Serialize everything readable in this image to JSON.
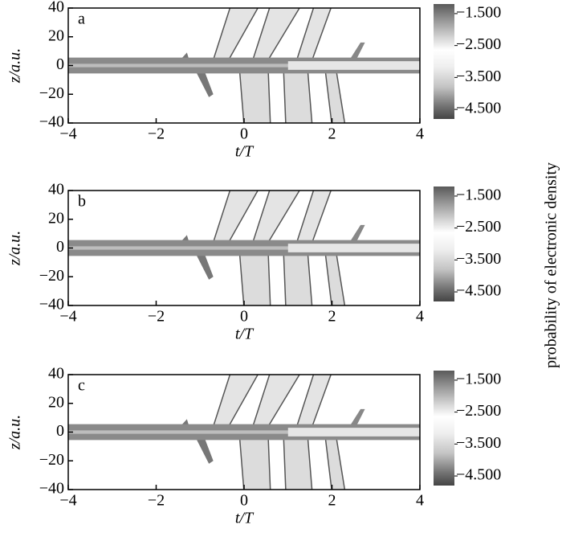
{
  "colorbar_label": "probability of electronic density",
  "chart_data": [
    {
      "type": "contour",
      "panel_label": "a",
      "xlabel": "t/T",
      "ylabel": "z/a.u.",
      "xlim": [
        -4,
        4
      ],
      "ylim": [
        -40,
        40
      ],
      "xticks": [
        {
          "value": -4,
          "label": "−4"
        },
        {
          "value": -2,
          "label": "−2"
        },
        0,
        2,
        4
      ],
      "yticks": [
        40,
        20,
        0,
        {
          "value": -20,
          "label": "−20"
        },
        {
          "value": -40,
          "label": "−40"
        }
      ],
      "colorbar_lim": [
        -4.8,
        -1.2
      ],
      "colorbar_ticks": [
        {
          "value": -1.5,
          "label": "−1.500"
        },
        {
          "value": -2.5,
          "label": "−2.500"
        },
        {
          "value": -3.5,
          "label": "−3.500"
        },
        {
          "value": -4.5,
          "label": "−4.500"
        }
      ]
    },
    {
      "type": "contour",
      "panel_label": "b",
      "xlabel": "t/T",
      "ylabel": "z/a.u.",
      "xlim": [
        -4,
        4
      ],
      "ylim": [
        -40,
        40
      ],
      "xticks": [
        {
          "value": -4,
          "label": "−4"
        },
        {
          "value": -2,
          "label": "−2"
        },
        0,
        2,
        4
      ],
      "yticks": [
        40,
        20,
        0,
        {
          "value": -20,
          "label": "−20"
        },
        {
          "value": -40,
          "label": "−40"
        }
      ],
      "colorbar_lim": [
        -4.8,
        -1.2
      ],
      "colorbar_ticks": [
        {
          "value": -1.5,
          "label": "−1.500"
        },
        {
          "value": -2.5,
          "label": "−2.500"
        },
        {
          "value": -3.5,
          "label": "−3.500"
        },
        {
          "value": -4.5,
          "label": "−4.500"
        }
      ]
    },
    {
      "type": "contour",
      "panel_label": "c",
      "xlabel": "t/T",
      "ylabel": "z/a.u.",
      "xlim": [
        -4,
        4
      ],
      "ylim": [
        -40,
        40
      ],
      "xticks": [
        {
          "value": -4,
          "label": "−4"
        },
        {
          "value": -2,
          "label": "−2"
        },
        0,
        2,
        4
      ],
      "yticks": [
        40,
        20,
        0,
        {
          "value": -20,
          "label": "−20"
        },
        {
          "value": -40,
          "label": "−40"
        }
      ],
      "colorbar_lim": [
        -4.8,
        -1.2
      ],
      "colorbar_ticks": [
        {
          "value": -1.5,
          "label": "−1.500"
        },
        {
          "value": -2.5,
          "label": "−2.500"
        },
        {
          "value": -3.5,
          "label": "−3.500"
        },
        {
          "value": -4.5,
          "label": "−4.500"
        }
      ]
    }
  ]
}
